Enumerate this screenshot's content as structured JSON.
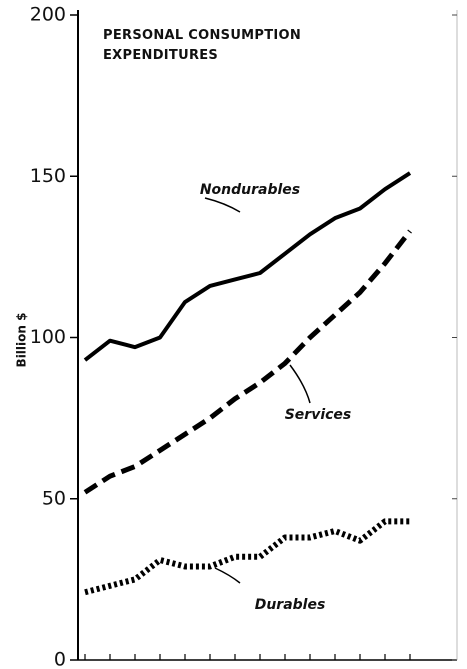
{
  "chart_data": {
    "type": "line",
    "title": "PERSONAL CONSUMPTION EXPENDITURES",
    "y_label": "Billion $",
    "categories": [
      null,
      null,
      null,
      null,
      null,
      null,
      null,
      null,
      null,
      null,
      null,
      null,
      null,
      null
    ],
    "ylim": [
      0,
      200
    ],
    "yticks": [
      0,
      50,
      100,
      150,
      200
    ],
    "series": [
      {
        "name": "Nondurables",
        "color": "#000000",
        "style": "solid",
        "values": [
          93,
          99,
          97,
          100,
          111,
          116,
          118,
          120,
          126,
          132,
          137,
          140,
          146,
          151
        ]
      },
      {
        "name": "Services",
        "color": "#000000",
        "style": "dashed",
        "values": [
          52,
          57,
          60,
          65,
          70,
          75,
          81,
          86,
          92,
          100,
          107,
          114,
          123,
          133
        ]
      },
      {
        "name": "Durables",
        "color": "#000000",
        "style": "dotted",
        "values": [
          21,
          23,
          25,
          31,
          29,
          29,
          32,
          32,
          38,
          38,
          40,
          37,
          43,
          43
        ]
      }
    ]
  }
}
